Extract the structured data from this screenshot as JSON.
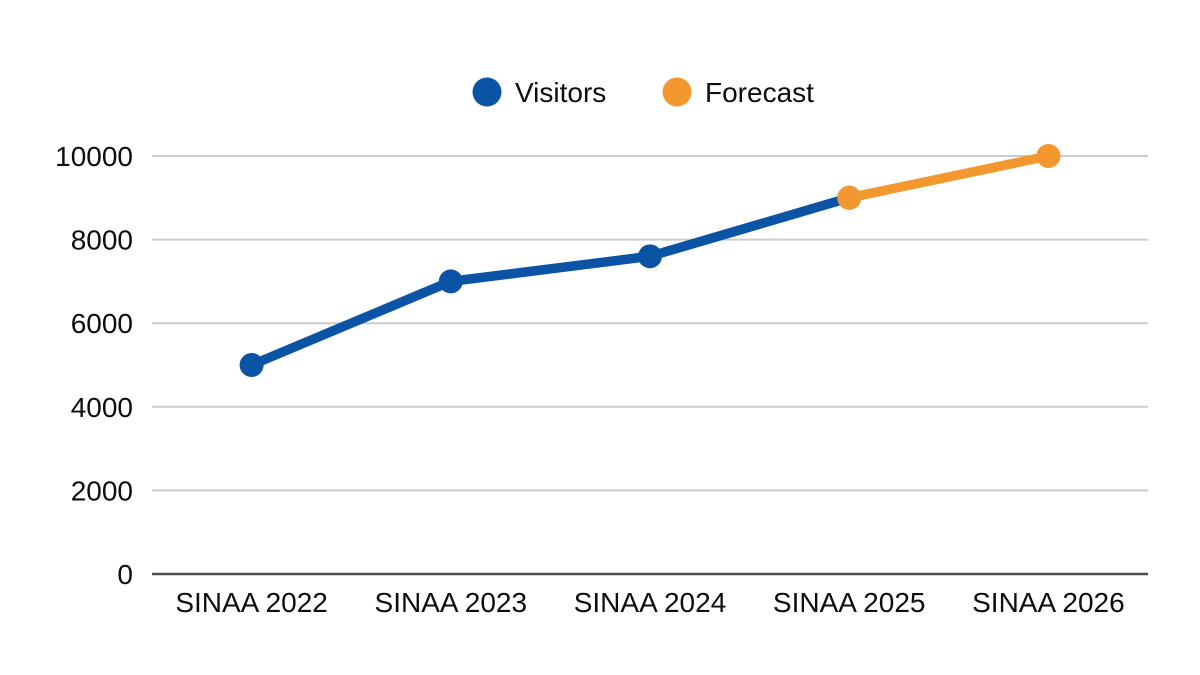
{
  "chart_data": {
    "type": "line",
    "title": "",
    "xlabel": "",
    "ylabel": "",
    "categories": [
      "SINAA 2022",
      "SINAA 2023",
      "SINAA 2024",
      "SINAA 2025",
      "SINAA 2026"
    ],
    "series": [
      {
        "name": "Visitors",
        "color": "#0b54a5",
        "values": [
          5000,
          7000,
          7600,
          9000,
          null
        ]
      },
      {
        "name": "Forecast",
        "color": "#f2982e",
        "values": [
          null,
          null,
          null,
          9000,
          10000
        ]
      }
    ],
    "ylim": [
      0,
      10000
    ],
    "yticks": [
      0,
      2000,
      4000,
      6000,
      8000,
      10000
    ],
    "grid": true,
    "marker": "circle",
    "legend_position": "top"
  },
  "colors": {
    "grid": "#cccccc",
    "axis": "#4d4d4d",
    "text": "#0d0d0d",
    "background": "#ffffff"
  }
}
